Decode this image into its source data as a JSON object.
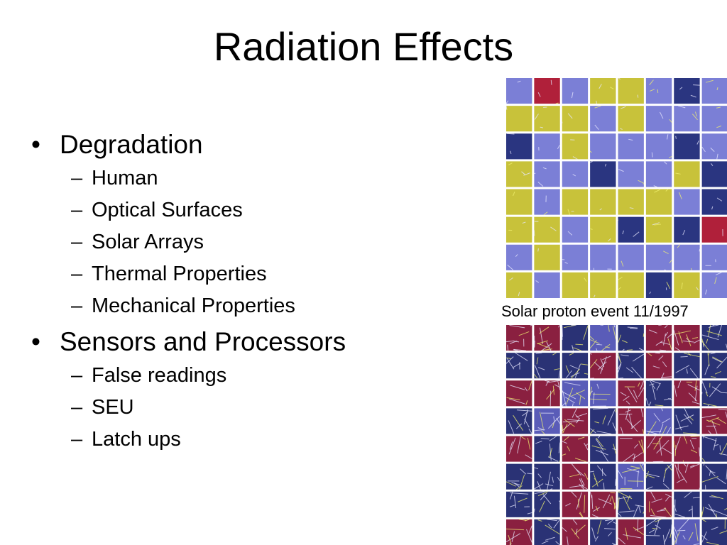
{
  "slide": {
    "title": "Radiation Effects",
    "bullets": [
      {
        "text": "Degradation",
        "sub": [
          "Human",
          "Optical Surfaces",
          "Solar Arrays",
          "Thermal Properties",
          "Mechanical Properties"
        ]
      },
      {
        "text": "Sensors and Processors",
        "sub": [
          "False readings",
          "SEU",
          "Latch ups"
        ]
      }
    ],
    "bullet_marker": "•",
    "sub_marker": "–"
  },
  "figures": {
    "top_grid": {
      "rows": 8,
      "cols": 8,
      "palette": {
        "y": "#c8c23a",
        "b": "#7b7fd6",
        "d": "#2a3580",
        "r": "#b0203a"
      },
      "cells": [
        "brbyybdb",
        "yyybybbb",
        "dbybbbdb",
        "ybbdbbyd",
        "ybyyyybd",
        "yybydydr",
        "bybbbbbb",
        "ybyyydyb"
      ]
    },
    "caption": "Solar proton event 11/1997",
    "bottom_grid": {
      "rows": 8,
      "cols": 8,
      "palette": {
        "r": "#8a2040",
        "d": "#2a3275",
        "b": "#5a5cb8"
      },
      "cells": [
        "rrdbdrrd",
        "dddrdrdd",
        "rrbbrdrd",
        "dbrdrbdr",
        "rdrdrrrd",
        "ddrdbdrd",
        "ddrrdrdd",
        "rdrdrdbd"
      ]
    }
  }
}
